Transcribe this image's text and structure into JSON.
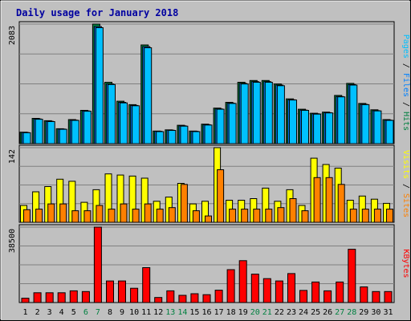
{
  "chart_data": {
    "type": "bar",
    "title": "Daily usage for January 2018",
    "categories": [
      "1",
      "2",
      "3",
      "4",
      "5",
      "6",
      "7",
      "8",
      "9",
      "10",
      "11",
      "12",
      "13",
      "14",
      "15",
      "16",
      "17",
      "18",
      "19",
      "20",
      "21",
      "22",
      "23",
      "24",
      "25",
      "26",
      "27",
      "28",
      "29",
      "30",
      "31"
    ],
    "weekend_days": [
      "6",
      "7",
      "13",
      "14",
      "20",
      "21",
      "27",
      "28"
    ],
    "grid": true,
    "panels": [
      {
        "name": "hits",
        "y_max_label": "2083",
        "ylim": [
          0,
          2083
        ],
        "side_labels": [
          {
            "text": "Pages",
            "color": "#00c0ff"
          },
          {
            "text": " / ",
            "color": "#000000"
          },
          {
            "text": "Files",
            "color": "#0080ff"
          },
          {
            "text": " / ",
            "color": "#000000"
          },
          {
            "text": "Hits",
            "color": "#008040"
          }
        ],
        "series": [
          {
            "color": "#008040",
            "values": [
              200,
              440,
              400,
              260,
              420,
              580,
              2083,
              1070,
              740,
              680,
              1720,
              220,
              240,
              320,
              220,
              340,
              620,
              720,
              1070,
              1100,
              1100,
              1040,
              780,
              600,
              530,
              550,
              840,
              1050,
              700,
              590,
              420
            ]
          },
          {
            "color": "#0080ff",
            "values": [
              195,
              430,
              390,
              255,
              410,
              570,
              2040,
              1040,
              720,
              665,
              1690,
              215,
              235,
              310,
              215,
              330,
              605,
              705,
              1050,
              1080,
              1080,
              1020,
              765,
              585,
              520,
              540,
              820,
              1030,
              685,
              575,
              410
            ]
          },
          {
            "color": "#00c0ff",
            "values": [
              190,
              425,
              385,
              250,
              405,
              565,
              2020,
              1030,
              710,
              660,
              1670,
              210,
              230,
              305,
              210,
              325,
              600,
              700,
              1040,
              1070,
              1070,
              1010,
              760,
              580,
              515,
              535,
              815,
              1020,
              680,
              570,
              405
            ]
          }
        ]
      },
      {
        "name": "visits",
        "y_max_label": "142",
        "ylim": [
          0,
          142
        ],
        "side_labels": [
          {
            "text": "Visits",
            "color": "#ffff00"
          },
          {
            "text": " / ",
            "color": "#000000"
          },
          {
            "text": "Sites",
            "color": "#ff8000"
          }
        ],
        "series": [
          {
            "color": "#ffff00",
            "values": [
              32,
              58,
              68,
              82,
              78,
              38,
              62,
              92,
              90,
              88,
              84,
              40,
              48,
              74,
              35,
              40,
              142,
              42,
              42,
              45,
              65,
              40,
              62,
              32,
              122,
              110,
              103,
              42,
              50,
              44,
              36
            ]
          },
          {
            "color": "#ff8000",
            "values": [
              24,
              25,
              35,
              35,
              22,
              22,
              32,
              25,
              35,
              25,
              35,
              25,
              28,
              72,
              22,
              12,
              100,
              25,
              25,
              25,
              25,
              28,
              45,
              22,
              85,
              85,
              72,
              25,
              25,
              25,
              25
            ]
          }
        ]
      },
      {
        "name": "kbytes",
        "y_max_label": "38500",
        "ylim": [
          0,
          38500
        ],
        "side_labels": [
          {
            "text": "KBytes",
            "color": "#ff0000"
          }
        ],
        "series": [
          {
            "color": "#ff0000",
            "values": [
              2200,
              5000,
              5000,
              5000,
              6000,
              5600,
              38500,
              11000,
              11000,
              7300,
              17800,
              2600,
              6000,
              3700,
              4500,
              4000,
              6300,
              16800,
              21400,
              14500,
              12200,
              11000,
              14800,
              6200,
              10500,
              6000,
              10500,
              27200,
              8000,
              5600,
              5600
            ]
          }
        ]
      }
    ]
  }
}
